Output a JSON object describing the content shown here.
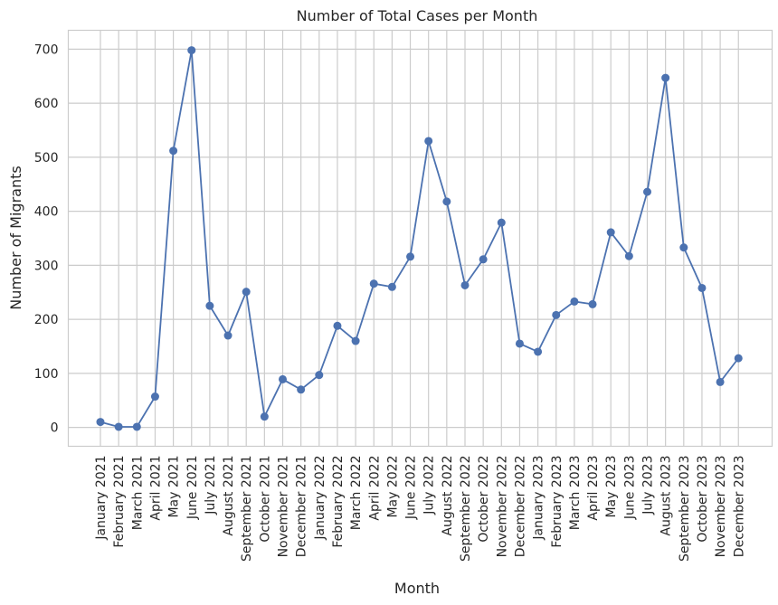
{
  "chart_data": {
    "type": "line",
    "title": "Number of Total Cases per Month",
    "xlabel": "Month",
    "ylabel": "Number of Migrants",
    "categories": [
      "January 2021",
      "February 2021",
      "March 2021",
      "April 2021",
      "May 2021",
      "June 2021",
      "July 2021",
      "August 2021",
      "September 2021",
      "October 2021",
      "November 2021",
      "December 2021",
      "January 2022",
      "February 2022",
      "March 2022",
      "April 2022",
      "May 2022",
      "June 2022",
      "July 2022",
      "August 2022",
      "September 2022",
      "October 2022",
      "November 2022",
      "December 2022",
      "January 2023",
      "February 2023",
      "March 2023",
      "April 2023",
      "May 2023",
      "June 2023",
      "July 2023",
      "August 2023",
      "September 2023",
      "October 2023",
      "November 2023",
      "December 2023"
    ],
    "series": [
      {
        "values": [
          10,
          1,
          1,
          57,
          512,
          698,
          225,
          170,
          251,
          20,
          89,
          70,
          97,
          188,
          160,
          266,
          260,
          316,
          530,
          418,
          263,
          311,
          379,
          155,
          140,
          208,
          233,
          228,
          361,
          317,
          436,
          647,
          333,
          258,
          84,
          128
        ],
        "color": "#4c72b0"
      }
    ],
    "ylim": [
      -35,
      735
    ],
    "yticks": [
      0,
      100,
      200,
      300,
      400,
      500,
      600,
      700
    ],
    "grid": true,
    "legend": "none"
  }
}
